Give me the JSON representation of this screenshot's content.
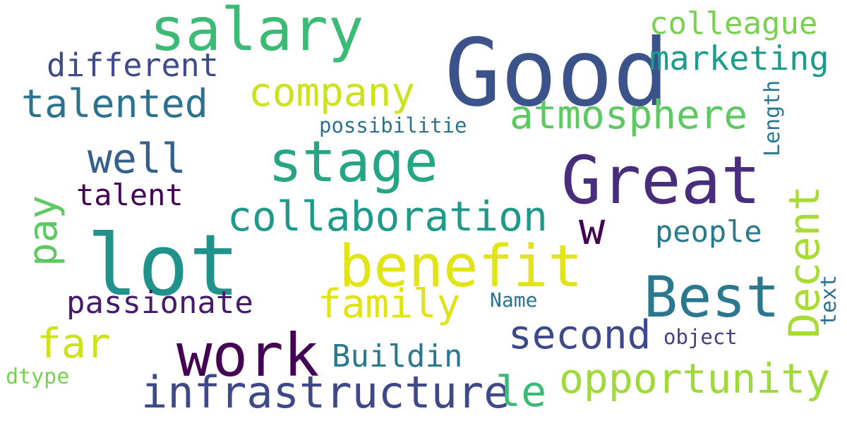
{
  "words": {
    "good": {
      "text": "Good",
      "color": "#3b528b"
    },
    "great": {
      "text": "Great",
      "color": "#472d7b"
    },
    "lot": {
      "text": "lot",
      "color": "#21918c"
    },
    "salary": {
      "text": "salary",
      "color": "#3bbb75"
    },
    "stage": {
      "text": "stage",
      "color": "#25a584"
    },
    "benefit": {
      "text": "benefit",
      "color": "#e2e418"
    },
    "work": {
      "text": "work",
      "color": "#440154"
    },
    "best": {
      "text": "Best",
      "color": "#2a788e"
    },
    "collaboration": {
      "text": "collaboration",
      "color": "#1f998a"
    },
    "infrastructure": {
      "text": "infrastructure",
      "color": "#3e4989"
    },
    "opportunity": {
      "text": "opportunity",
      "color": "#9fda3a"
    },
    "atmosphere": {
      "text": "atmosphere",
      "color": "#5ec962"
    },
    "company": {
      "text": "company",
      "color": "#cde11d"
    },
    "talented": {
      "text": "talented",
      "color": "#2c728e"
    },
    "family": {
      "text": "family",
      "color": "#dfe318"
    },
    "second": {
      "text": "second",
      "color": "#3e4989"
    },
    "w": {
      "text": "w",
      "color": "#440154"
    },
    "well": {
      "text": "well",
      "color": "#355f8d"
    },
    "colleague": {
      "text": "colleague",
      "color": "#7ad151"
    },
    "marketing": {
      "text": "marketing",
      "color": "#1e9b8a"
    },
    "different": {
      "text": "different",
      "color": "#3e4a89"
    },
    "people": {
      "text": "people",
      "color": "#2a788e"
    },
    "talent": {
      "text": "talent",
      "color": "#440154"
    },
    "passionate": {
      "text": "passionate",
      "color": "#481a6c"
    },
    "far": {
      "text": "far",
      "color": "#cde11d"
    },
    "buildin": {
      "text": "Buildin",
      "color": "#2a788e"
    },
    "le": {
      "text": "le",
      "color": "#3bbb75"
    },
    "possibilitie": {
      "text": "possibilitie",
      "color": "#2c728e"
    },
    "name": {
      "text": "Name",
      "color": "#2c728e"
    },
    "object": {
      "text": "object",
      "color": "#433e85"
    },
    "dtype": {
      "text": "dtype",
      "color": "#7ad151"
    },
    "pay": {
      "text": "pay",
      "color": "#5ec962"
    },
    "decent": {
      "text": "Decent",
      "color": "#a8db34"
    },
    "length": {
      "text": "Length",
      "color": "#2a788e"
    },
    "text": {
      "text": "text",
      "color": "#2c728e"
    }
  }
}
